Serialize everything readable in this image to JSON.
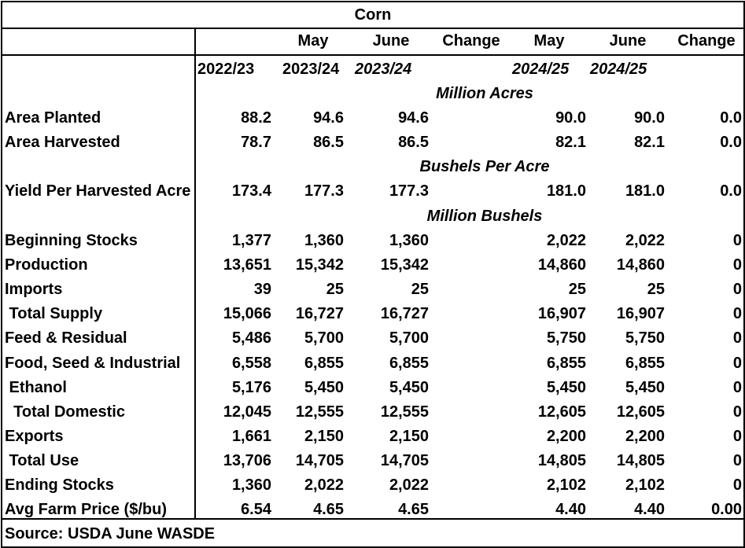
{
  "title": "Corn",
  "header_row1": [
    "",
    "May",
    "June",
    "Change",
    "May",
    "June",
    "Change"
  ],
  "header_row2": [
    "2022/23",
    "2023/24",
    "2023/24",
    "",
    "2024/25",
    "2024/25",
    ""
  ],
  "sections": {
    "acres": "Million Acres",
    "bushels_per_acre": "Bushels Per Acre",
    "million_bushels": "Million Bushels"
  },
  "rows": [
    {
      "label": "Area Planted",
      "values": [
        "88.2",
        "94.6",
        "94.6",
        "",
        "90.0",
        "90.0",
        "0.0"
      ]
    },
    {
      "label": "Area Harvested",
      "values": [
        "78.7",
        "86.5",
        "86.5",
        "",
        "82.1",
        "82.1",
        "0.0"
      ]
    },
    {
      "label": "Yield Per Harvested Acre",
      "values": [
        "173.4",
        "177.3",
        "177.3",
        "",
        "181.0",
        "181.0",
        "0.0"
      ]
    },
    {
      "label": "Beginning Stocks",
      "values": [
        "1,377",
        "1,360",
        "1,360",
        "",
        "2,022",
        "2,022",
        "0"
      ]
    },
    {
      "label": "Production",
      "values": [
        "13,651",
        "15,342",
        "15,342",
        "",
        "14,860",
        "14,860",
        "0"
      ]
    },
    {
      "label": "Imports",
      "values": [
        "39",
        "25",
        "25",
        "",
        "25",
        "25",
        "0"
      ]
    },
    {
      "label": " Total Supply",
      "values": [
        "15,066",
        "16,727",
        "16,727",
        "",
        "16,907",
        "16,907",
        "0"
      ]
    },
    {
      "label": "Feed & Residual",
      "values": [
        "5,486",
        "5,700",
        "5,700",
        "",
        "5,750",
        "5,750",
        "0"
      ]
    },
    {
      "label": "Food, Seed & Industrial",
      "values": [
        "6,558",
        "6,855",
        "6,855",
        "",
        "6,855",
        "6,855",
        "0"
      ]
    },
    {
      "label": " Ethanol",
      "values": [
        "5,176",
        "5,450",
        "5,450",
        "",
        "5,450",
        "5,450",
        "0"
      ]
    },
    {
      "label": "  Total Domestic",
      "values": [
        "12,045",
        "12,555",
        "12,555",
        "",
        "12,605",
        "12,605",
        "0"
      ]
    },
    {
      "label": "Exports",
      "values": [
        "1,661",
        "2,150",
        "2,150",
        "",
        "2,200",
        "2,200",
        "0"
      ]
    },
    {
      "label": " Total Use",
      "values": [
        "13,706",
        "14,705",
        "14,705",
        "",
        "14,805",
        "14,805",
        "0"
      ]
    },
    {
      "label": "Ending Stocks",
      "values": [
        "1,360",
        "2,022",
        "2,022",
        "",
        "2,102",
        "2,102",
        "0"
      ]
    },
    {
      "label": "Avg Farm Price ($/bu)",
      "values": [
        "6.54",
        "4.65",
        "4.65",
        "",
        "4.40",
        "4.40",
        "0.00"
      ]
    }
  ],
  "source": "Source: USDA June WASDE"
}
